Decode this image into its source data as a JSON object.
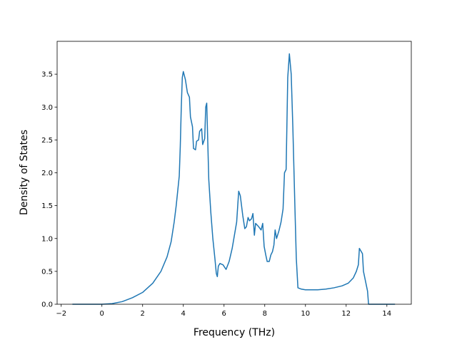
{
  "chart_data": {
    "type": "line",
    "xlabel": "Frequency (THz)",
    "ylabel": "Density of States",
    "color": "#1f77b4",
    "x": [
      -1.45,
      -0.5,
      0,
      0.5,
      1,
      1.5,
      2,
      2.5,
      2.9,
      3.2,
      3.4,
      3.55,
      3.65,
      3.8,
      3.85,
      3.9,
      3.95,
      4.0,
      4.1,
      4.2,
      4.3,
      4.35,
      4.45,
      4.5,
      4.6,
      4.65,
      4.75,
      4.8,
      4.9,
      4.95,
      5.05,
      5.1,
      5.15,
      5.25,
      5.35,
      5.45,
      5.55,
      5.62,
      5.67,
      5.72,
      5.8,
      5.95,
      6.1,
      6.25,
      6.4,
      6.62,
      6.72,
      6.8,
      6.92,
      7.02,
      7.1,
      7.18,
      7.25,
      7.35,
      7.42,
      7.49,
      7.55,
      7.7,
      7.82,
      7.9,
      7.97,
      8.05,
      8.12,
      8.22,
      8.3,
      8.38,
      8.45,
      8.51,
      8.58,
      8.7,
      8.8,
      8.9,
      8.97,
      9.05,
      9.13,
      9.21,
      9.3,
      9.38,
      9.48,
      9.55,
      9.63,
      9.8,
      10.0,
      10.6,
      11.0,
      11.4,
      11.8,
      12.1,
      12.35,
      12.5,
      12.6,
      12.65,
      12.8,
      12.85,
      12.95,
      13.05,
      13.1,
      13.5,
      14.4
    ],
    "values": [
      0,
      0,
      0,
      0.01,
      0.04,
      0.1,
      0.18,
      0.32,
      0.5,
      0.72,
      0.95,
      1.25,
      1.5,
      1.95,
      2.4,
      3.0,
      3.45,
      3.54,
      3.42,
      3.22,
      3.15,
      2.85,
      2.7,
      2.37,
      2.35,
      2.48,
      2.5,
      2.63,
      2.67,
      2.43,
      2.52,
      3.0,
      3.06,
      1.9,
      1.4,
      1.0,
      0.7,
      0.47,
      0.42,
      0.58,
      0.62,
      0.6,
      0.53,
      0.65,
      0.85,
      1.25,
      1.72,
      1.65,
      1.35,
      1.15,
      1.18,
      1.32,
      1.27,
      1.3,
      1.38,
      1.05,
      1.23,
      1.18,
      1.13,
      1.23,
      0.88,
      0.75,
      0.65,
      0.65,
      0.75,
      0.8,
      0.9,
      1.13,
      1.0,
      1.12,
      1.25,
      1.45,
      2.0,
      2.05,
      3.45,
      3.81,
      3.5,
      2.7,
      1.5,
      0.7,
      0.25,
      0.23,
      0.22,
      0.22,
      0.23,
      0.25,
      0.28,
      0.32,
      0.4,
      0.5,
      0.6,
      0.85,
      0.77,
      0.5,
      0.35,
      0.2,
      0,
      0,
      0
    ],
    "xlim": [
      -2.2,
      15.2
    ],
    "xticks": [
      {
        "value": -2,
        "label": "−2"
      },
      0,
      2,
      4,
      6,
      8,
      10,
      12,
      14
    ],
    "ylim": [
      0,
      4.0
    ],
    "yticks": [
      {
        "value": 0,
        "label": "0.0"
      },
      {
        "value": 0.5,
        "label": "0.5"
      },
      {
        "value": 1,
        "label": "1.0"
      },
      {
        "value": 1.5,
        "label": "1.5"
      },
      {
        "value": 2,
        "label": "2.0"
      },
      {
        "value": 2.5,
        "label": "2.5"
      },
      {
        "value": 3,
        "label": "3.0"
      },
      {
        "value": 3.5,
        "label": "3.5"
      }
    ]
  }
}
